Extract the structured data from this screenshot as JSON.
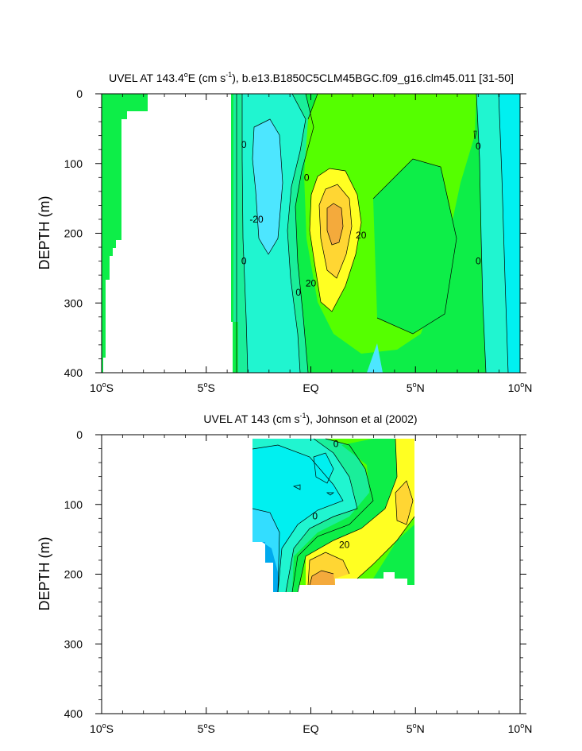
{
  "chart_data": [
    {
      "type": "heatmap",
      "title": "UVEL AT 143.4°E (cm s⁻¹), b.e13.B1850C5CLM45BGC.f09_g16.clm45.011 [31-50]",
      "title_parts": {
        "pre": "UVEL AT 143.4",
        "sup1": "o",
        "mid": "E (cm s",
        "sup2": "-1",
        "post": "), b.e13.B1850C5CLM45BGC.f09_g16.clm45.011 [31-50]"
      },
      "ylabel": "DEPTH (m)",
      "xlim": [
        -10,
        10
      ],
      "ylim": [
        0,
        400
      ],
      "y_reversed": true,
      "x_ticks": [
        {
          "value": -10,
          "label": "10",
          "sup": "o",
          "suffix": "S"
        },
        {
          "value": -5,
          "label": "5",
          "sup": "o",
          "suffix": "S"
        },
        {
          "value": 0,
          "label": "EQ",
          "sup": "",
          "suffix": ""
        },
        {
          "value": 5,
          "label": "5",
          "sup": "o",
          "suffix": "N"
        },
        {
          "value": 10,
          "label": "10",
          "sup": "o",
          "suffix": "N"
        }
      ],
      "y_ticks": [
        0,
        100,
        200,
        300,
        400
      ],
      "contour_labels": [
        {
          "x": -3.2,
          "y": 73,
          "text": "0"
        },
        {
          "x": -0.2,
          "y": 120,
          "text": "0"
        },
        {
          "x": -2.6,
          "y": 180,
          "text": "-20"
        },
        {
          "x": -3.2,
          "y": 240,
          "text": "0"
        },
        {
          "x": -0.6,
          "y": 285,
          "text": "0"
        },
        {
          "x": 0.0,
          "y": 272,
          "text": "20"
        },
        {
          "x": 2.4,
          "y": 203,
          "text": "20"
        },
        {
          "x": 8.0,
          "y": 75,
          "text": "0"
        },
        {
          "x": 8.0,
          "y": 240,
          "text": "0"
        }
      ],
      "colors": {
        "lightblue": "#4de6ff",
        "cyan": "#00f0f0",
        "aqua": "#20f5d0",
        "seagreen": "#1aee9a",
        "green": "#0dee48",
        "lime": "#55ff00",
        "yellow": "#ffff22",
        "gold": "#ffd633",
        "orange": "#f4aa3c"
      }
    },
    {
      "type": "heatmap",
      "title": "UVEL AT 143 (cm s⁻¹), Johnson et al (2002)",
      "title_parts": {
        "pre": "UVEL AT 143 (cm s",
        "sup": "-1",
        "post": "), Johnson et al (2002)"
      },
      "ylabel": "DEPTH (m)",
      "xlim": [
        -10,
        10
      ],
      "ylim": [
        0,
        400
      ],
      "y_reversed": true,
      "x_ticks": [
        {
          "value": -10,
          "label": "10",
          "sup": "o",
          "suffix": "S"
        },
        {
          "value": -5,
          "label": "5",
          "sup": "o",
          "suffix": "S"
        },
        {
          "value": 0,
          "label": "EQ",
          "sup": "",
          "suffix": ""
        },
        {
          "value": 5,
          "label": "5",
          "sup": "o",
          "suffix": "N"
        },
        {
          "value": 10,
          "label": "10",
          "sup": "o",
          "suffix": "N"
        }
      ],
      "y_ticks": [
        0,
        100,
        200,
        300,
        400
      ],
      "data_extent": {
        "x": [
          -2.8,
          5.0
        ],
        "y": [
          5,
          225
        ]
      },
      "contour_labels": [
        {
          "x": 1.2,
          "y": 13,
          "text": "0"
        },
        {
          "x": 0.2,
          "y": 117,
          "text": "0"
        },
        {
          "x": 1.6,
          "y": 158,
          "text": "20"
        }
      ],
      "colors": {
        "blue": "#00aaee",
        "lightblue": "#33ddff",
        "cyan": "#00f0f0",
        "aqua": "#20f5d0",
        "seagreen": "#1aee9a",
        "green": "#0dee48",
        "lime": "#55ff00",
        "yellow": "#ffff22",
        "gold": "#ffd633",
        "orange": "#f4aa3c"
      }
    }
  ]
}
